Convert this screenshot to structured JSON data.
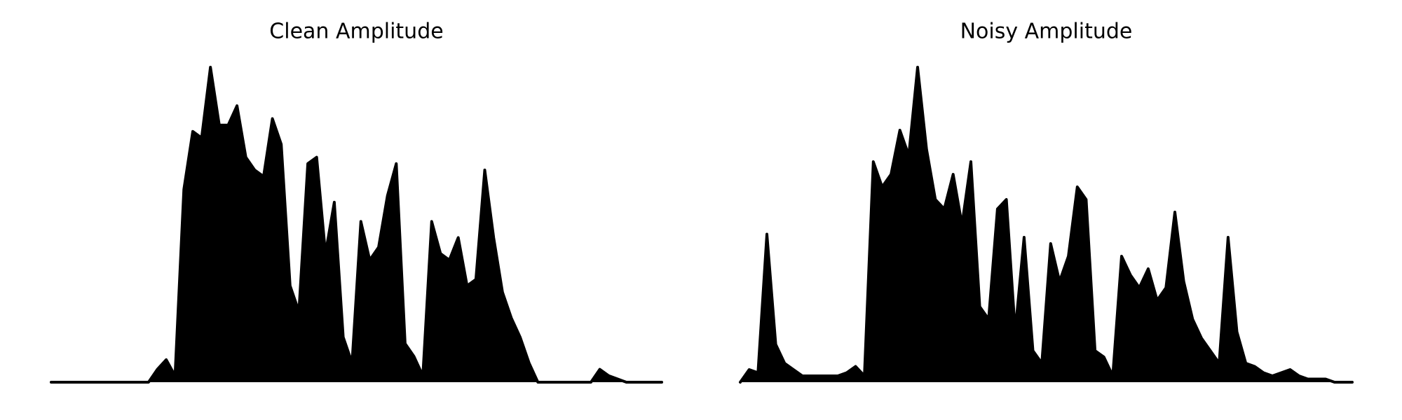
{
  "chart_data": [
    {
      "type": "area",
      "title": "Clean Amplitude",
      "color": "#000000",
      "values": [
        0,
        0,
        0,
        0,
        0,
        0,
        0,
        0,
        0,
        0,
        0,
        0,
        0.04,
        0.07,
        0.02,
        0.6,
        0.78,
        0.76,
        0.98,
        0.8,
        0.8,
        0.86,
        0.7,
        0.66,
        0.64,
        0.82,
        0.74,
        0.3,
        0.22,
        0.68,
        0.7,
        0.4,
        0.56,
        0.14,
        0.06,
        0.5,
        0.38,
        0.42,
        0.58,
        0.68,
        0.12,
        0.08,
        0.02,
        0.5,
        0.4,
        0.38,
        0.45,
        0.3,
        0.32,
        0.66,
        0.45,
        0.28,
        0.2,
        0.14,
        0.06,
        0,
        0,
        0,
        0,
        0,
        0,
        0,
        0.04,
        0.02,
        0.01,
        0,
        0,
        0,
        0,
        0
      ]
    },
    {
      "type": "area",
      "title": "Noisy Amplitude",
      "color": "#000000",
      "values": [
        0,
        0.04,
        0.03,
        0.47,
        0.12,
        0.06,
        0.04,
        0.02,
        0.02,
        0.02,
        0.02,
        0.02,
        0.03,
        0.05,
        0.02,
        0.7,
        0.62,
        0.66,
        0.8,
        0.72,
        1.0,
        0.74,
        0.58,
        0.55,
        0.66,
        0.5,
        0.7,
        0.24,
        0.2,
        0.55,
        0.58,
        0.16,
        0.46,
        0.1,
        0.06,
        0.44,
        0.32,
        0.4,
        0.62,
        0.58,
        0.1,
        0.08,
        0.02,
        0.4,
        0.34,
        0.3,
        0.36,
        0.26,
        0.3,
        0.54,
        0.32,
        0.2,
        0.14,
        0.1,
        0.06,
        0.46,
        0.16,
        0.06,
        0.05,
        0.03,
        0.02,
        0.03,
        0.04,
        0.02,
        0.01,
        0.01,
        0.01,
        0,
        0,
        0
      ]
    }
  ]
}
